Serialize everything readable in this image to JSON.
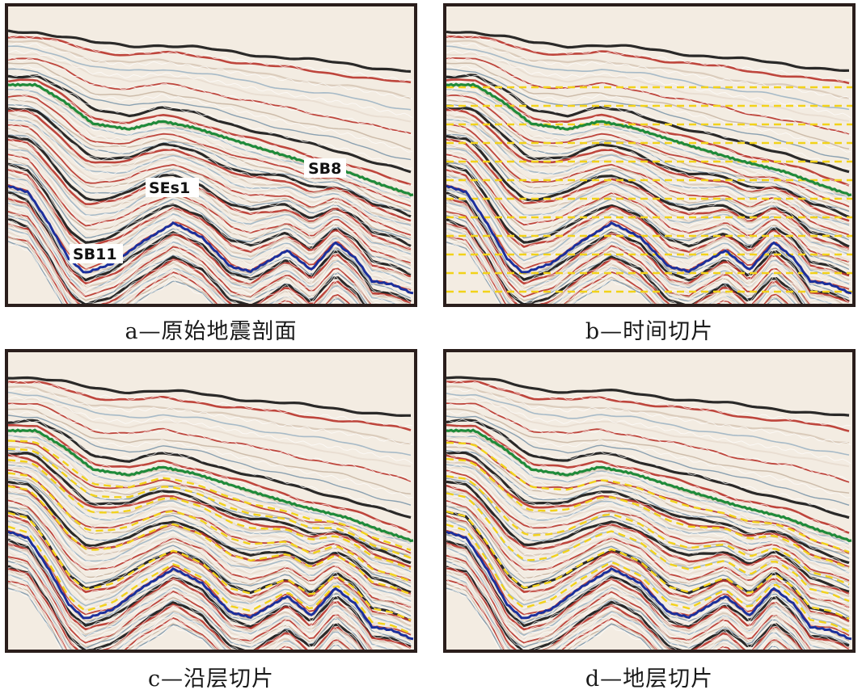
{
  "panels": [
    {
      "id": "a",
      "caption": "a—原始地震剖面",
      "labels": {
        "sb8": "SB8",
        "ses1": "SEs1",
        "sb11": "SB11"
      },
      "slices": "none"
    },
    {
      "id": "b",
      "caption": "b—时间切片",
      "slices": "time"
    },
    {
      "id": "c",
      "caption": "c—沿层切片",
      "slices": "horizon"
    },
    {
      "id": "d",
      "caption": "d—地层切片",
      "slices": "stratal"
    }
  ],
  "colors": {
    "green_horizon": "#1f8a3a",
    "blue_horizon": "#1b2f9c",
    "slice_dash": "#f2d21a",
    "trough": "#141414",
    "peak": "#b8332a",
    "frame": "#2a1e1c"
  }
}
